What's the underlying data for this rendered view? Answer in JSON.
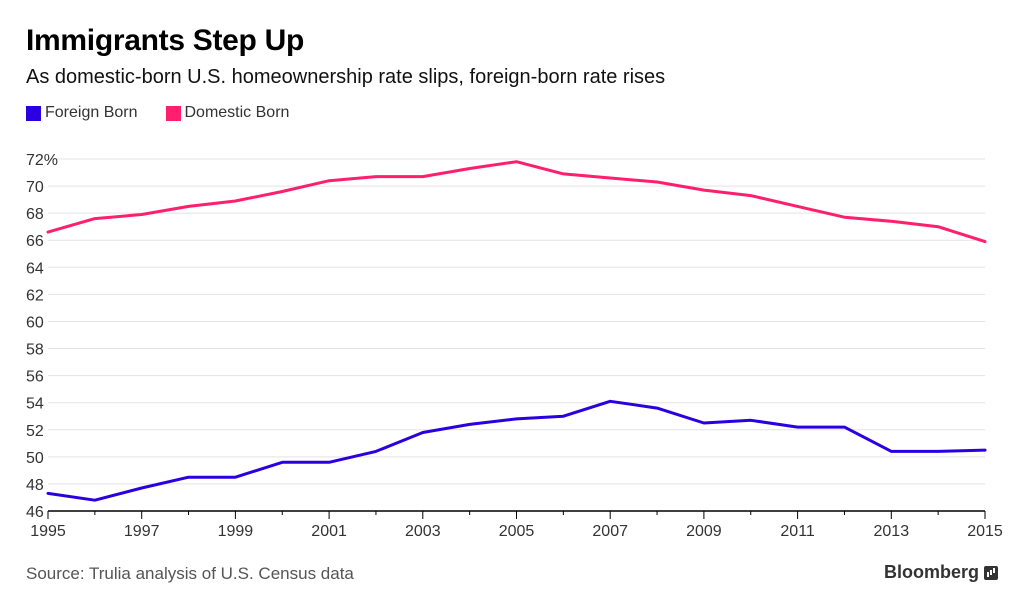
{
  "title": "Immigrants Step Up",
  "subtitle": "As domestic-born U.S. homeownership rate slips, foreign-born rate rises",
  "source": "Source: Trulia analysis of U.S. Census data",
  "brand": "Bloomberg",
  "colors": {
    "foreign": "#2a00e0",
    "domestic": "#ff1f6d",
    "grid": "#e3e3e3",
    "axis": "#000000"
  },
  "chart_data": {
    "type": "line",
    "title": "Immigrants Step Up",
    "subtitle": "As domestic-born U.S. homeownership rate slips, foreign-born rate rises",
    "xlabel": "",
    "ylabel": "",
    "legend_position": "top-left",
    "grid": true,
    "x": [
      1995,
      1996,
      1997,
      1998,
      1999,
      2000,
      2001,
      2002,
      2003,
      2004,
      2005,
      2006,
      2007,
      2008,
      2009,
      2010,
      2011,
      2012,
      2013,
      2014,
      2015
    ],
    "xlim": [
      1995,
      2015
    ],
    "ylim": [
      46,
      72
    ],
    "x_ticks": [
      "1995",
      "1997",
      "1999",
      "2001",
      "2003",
      "2005",
      "2007",
      "2009",
      "2011",
      "2013",
      "2015"
    ],
    "y_ticks": [
      "46",
      "48",
      "50",
      "52",
      "54",
      "56",
      "58",
      "60",
      "62",
      "64",
      "66",
      "68",
      "70",
      "72%"
    ],
    "series": [
      {
        "name": "Foreign Born",
        "color": "#2a00e0",
        "values": [
          47.3,
          46.8,
          47.7,
          48.5,
          48.5,
          49.6,
          49.6,
          50.4,
          51.8,
          52.4,
          52.8,
          53.0,
          54.1,
          53.6,
          52.5,
          52.7,
          52.2,
          52.2,
          50.4,
          50.4,
          50.5
        ]
      },
      {
        "name": "Domestic Born",
        "color": "#ff1f6d",
        "values": [
          66.6,
          67.6,
          67.9,
          68.5,
          68.9,
          69.6,
          70.4,
          70.7,
          70.7,
          71.3,
          71.8,
          70.9,
          70.6,
          70.3,
          69.7,
          69.3,
          68.5,
          67.7,
          67.4,
          67.0,
          65.9
        ]
      }
    ]
  }
}
